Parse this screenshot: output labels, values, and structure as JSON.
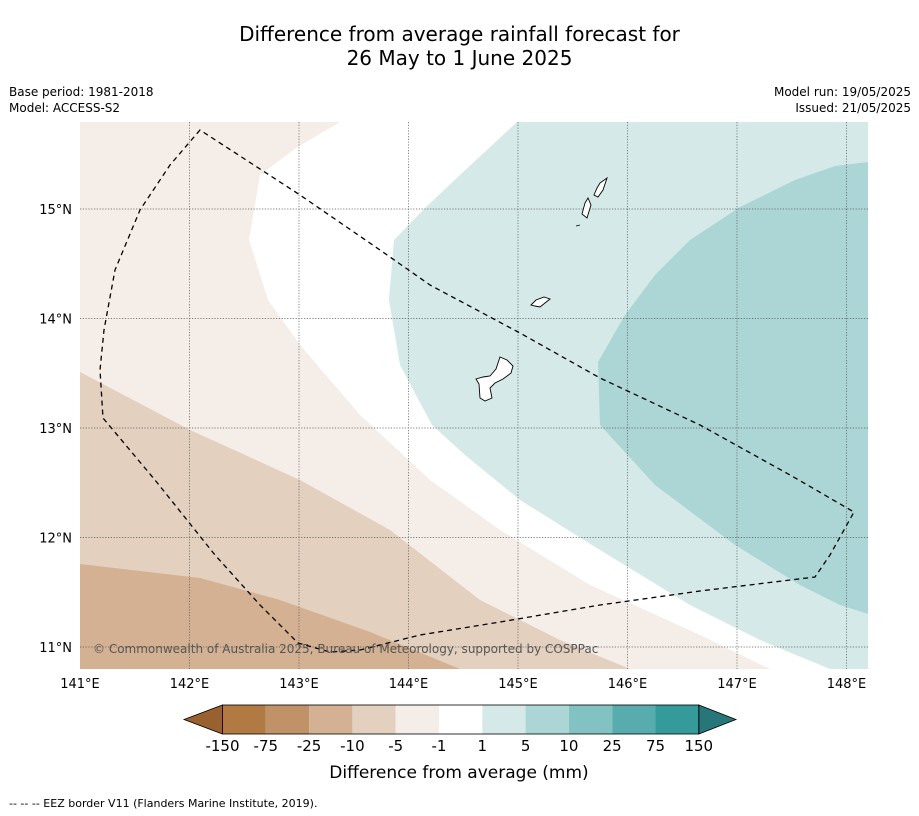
{
  "title": {
    "line1": "Difference from average rainfall forecast for",
    "line2": "26 May to 1 June 2025"
  },
  "meta_left": {
    "base_period": "Base period: 1981-2018",
    "model": "Model: ACCESS-S2"
  },
  "meta_right": {
    "model_run": "Model run: 19/05/2025",
    "issued": "Issued: 21/05/2025"
  },
  "map": {
    "lon_labels": [
      "141°E",
      "142°E",
      "143°E",
      "144°E",
      "145°E",
      "146°E",
      "147°E",
      "148°E"
    ],
    "lat_labels": [
      "15°N",
      "14°N",
      "13°N",
      "12°N",
      "11°N"
    ],
    "gridlines": "dotted",
    "islands": [
      "Guam",
      "Rota",
      "Tinian",
      "Saipan"
    ],
    "eez_border_style": "dashed",
    "copyright": "© Commonwealth of Australia 2025, Bureau of Meteorology, supported by COSPPac"
  },
  "colorbar": {
    "ticks": [
      "-150",
      "-75",
      "-25",
      "-10",
      "-5",
      "-1",
      "1",
      "5",
      "10",
      "25",
      "75",
      "150"
    ],
    "colors": [
      "#9a6130",
      "#b07a42",
      "#c19267",
      "#d3b192",
      "#e3d0bf",
      "#f4ede8",
      "#ffffff",
      "#d5e9e8",
      "#acd6d5",
      "#83c2c2",
      "#58acad",
      "#349b9a",
      "#27777a"
    ],
    "label": "Difference from average (mm)",
    "extends": "both"
  },
  "footer": "-- -- -- EEZ border V11 (Flanders Marine Institute, 2019)."
}
